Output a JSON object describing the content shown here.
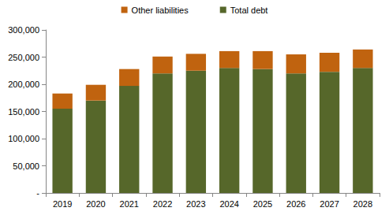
{
  "chart_data": {
    "type": "bar",
    "stacked": true,
    "legend": "top",
    "grid": false,
    "categories": [
      "2019",
      "2020",
      "2021",
      "2022",
      "2023",
      "2024",
      "2025",
      "2026",
      "2027",
      "2028"
    ],
    "series": [
      {
        "name": "Other liabilities",
        "color": "#c0630f",
        "values": [
          28000,
          29000,
          31000,
          31000,
          31000,
          31000,
          33000,
          35000,
          35000,
          34000
        ]
      },
      {
        "name": "Total debt",
        "color": "#56672a",
        "values": [
          155000,
          170000,
          197000,
          220000,
          225000,
          230000,
          228000,
          220000,
          223000,
          230000
        ]
      }
    ],
    "ylim": [
      0,
      300000
    ],
    "yticks": [
      {
        "value": 0,
        "label": "-"
      },
      {
        "value": 50000,
        "label": "50,000"
      },
      {
        "value": 100000,
        "label": "100,000"
      },
      {
        "value": 150000,
        "label": "150,000"
      },
      {
        "value": 200000,
        "label": "200,000"
      },
      {
        "value": 250000,
        "label": "250,000"
      },
      {
        "value": 300000,
        "label": "300,000"
      }
    ]
  }
}
